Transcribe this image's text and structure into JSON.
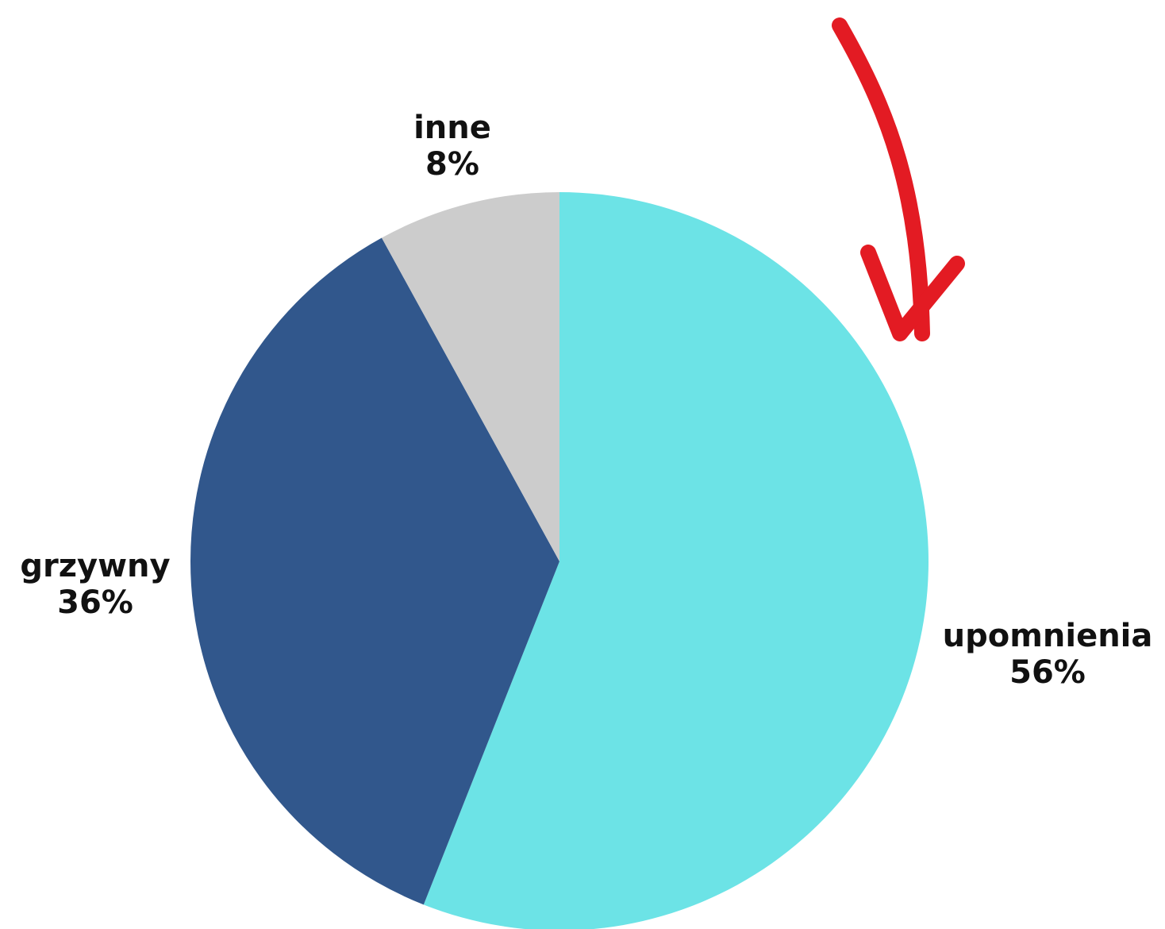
{
  "chart_data": {
    "type": "pie",
    "start": "12 o'clock",
    "direction": "clockwise",
    "slices": [
      {
        "label": "upomnienia",
        "value": 56,
        "value_label": "56%",
        "color": "#6ce3e6"
      },
      {
        "label": "grzywny",
        "value": 36,
        "value_label": "36%",
        "color": "#31578c"
      },
      {
        "label": "inne",
        "value": 8,
        "value_label": "8%",
        "color": "#cccccc"
      }
    ],
    "annotations": [
      {
        "type": "arrow",
        "color": "#e31b23",
        "points_to": "upomnienia"
      }
    ]
  }
}
